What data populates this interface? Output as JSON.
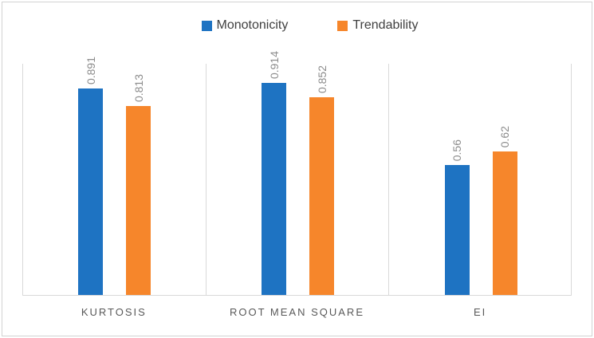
{
  "chart_data": {
    "type": "bar",
    "title": "",
    "categories": [
      "KURTOSIS",
      "ROOT MEAN SQUARE",
      "EI"
    ],
    "series": [
      {
        "name": "Monotonicity",
        "color": "#1E73C2",
        "values": [
          0.891,
          0.914,
          0.56
        ]
      },
      {
        "name": "Trendability",
        "color": "#F6862B",
        "values": [
          0.813,
          0.852,
          0.62
        ]
      }
    ],
    "data_label_texts": [
      [
        "0.891",
        "0.914",
        "0.56"
      ],
      [
        "0.813",
        "0.852",
        "0.62"
      ]
    ],
    "ylim": [
      0,
      1.0
    ],
    "legend_position": "top-center",
    "grid": "vertical category separator lines only",
    "data_label_style": "rotated 90 degrees above each bar",
    "colors": {
      "data_label": "#8C8C8C",
      "category_label": "#595959",
      "legend_text": "#404040",
      "gridline": "#D9D9D9",
      "frame_border": "#D2D2D2",
      "background": "#FFFFFF"
    }
  }
}
